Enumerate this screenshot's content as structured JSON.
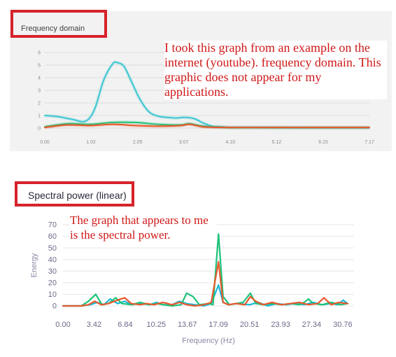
{
  "colors": {
    "annotation_red": "#d01818",
    "highlight_box": "#d6232b",
    "teal": "#3ec6d0",
    "green": "#1ec27a",
    "orange": "#e8592c",
    "cyan": "#19b9d8"
  },
  "annotations": {
    "top": "I took this graph from an example on the internet (youtube). frequency domain. This graphic does not appear for my applications.",
    "bottom": "The graph that appears to me is the spectral power."
  },
  "chart_data": [
    {
      "type": "line",
      "title": "Frequency domain",
      "xlabel": "",
      "ylabel": "",
      "xlim": [
        0,
        7.17
      ],
      "ylim": [
        0,
        6
      ],
      "xticks": [
        "0.00",
        "1.02",
        "2.05",
        "3.07",
        "4.10",
        "5.12",
        "6.15",
        "7.17"
      ],
      "yticks": [
        "0",
        "1",
        "2",
        "3",
        "4",
        "5",
        "6"
      ],
      "grid": true,
      "series": [
        {
          "color": "#3ec6d0",
          "x": [
            0,
            0.3,
            0.6,
            0.9,
            1.1,
            1.3,
            1.5,
            1.6,
            1.75,
            1.9,
            2.1,
            2.3,
            2.5,
            2.7,
            2.9,
            3.1,
            3.3,
            3.5,
            3.7,
            3.9,
            4.1,
            4.5,
            5.0,
            6.0,
            7.17
          ],
          "y": [
            1.0,
            0.9,
            0.7,
            0.55,
            1.5,
            3.8,
            5.1,
            5.2,
            4.9,
            3.8,
            2.3,
            1.3,
            0.95,
            0.85,
            0.8,
            0.85,
            0.75,
            0.4,
            0.15,
            0.1,
            0.05,
            0.05,
            0.03,
            0.02,
            0.02
          ]
        },
        {
          "color": "#1ec27a",
          "x": [
            0,
            0.5,
            1.0,
            1.5,
            2.0,
            2.5,
            3.0,
            3.2,
            3.5,
            4.0,
            5.0,
            6.0,
            7.17
          ],
          "y": [
            0.1,
            0.35,
            0.3,
            0.45,
            0.45,
            0.3,
            0.25,
            0.35,
            0.15,
            0.05,
            0.05,
            0.05,
            0.05
          ]
        },
        {
          "color": "#e8592c",
          "x": [
            0,
            0.5,
            1.0,
            1.5,
            2.0,
            2.5,
            3.0,
            3.2,
            3.5,
            4.0,
            5.0,
            6.0,
            7.17
          ],
          "y": [
            0.05,
            0.25,
            0.2,
            0.3,
            0.2,
            0.15,
            0.2,
            0.3,
            0.1,
            0.05,
            0.05,
            0.05,
            0.05
          ]
        }
      ]
    },
    {
      "type": "line",
      "title": "Spectral power (linear)",
      "xlabel": "Frequency (Hz)",
      "ylabel": "Energy",
      "xlim": [
        0,
        32
      ],
      "ylim": [
        0,
        70
      ],
      "xticks": [
        "0.00",
        "3.42",
        "6.84",
        "10.25",
        "13.67",
        "17.09",
        "20.51",
        "23.93",
        "27.34",
        "30.76"
      ],
      "yticks": [
        "0",
        "10",
        "20",
        "30",
        "40",
        "50",
        "60",
        "70"
      ],
      "grid": true,
      "series": [
        {
          "color": "#19b9d8",
          "x": [
            0,
            2.0,
            3.0,
            3.8,
            4.5,
            5.2,
            6.0,
            6.8,
            7.5,
            8.5,
            9.5,
            10.3,
            11.0,
            12.0,
            12.8,
            13.6,
            14.5,
            15.5,
            16.3,
            17.1,
            17.6,
            18.2,
            19.2,
            20.5,
            21.5,
            22.5,
            23.5,
            24.5,
            25.5,
            26.5,
            27.5,
            28.5,
            29.5,
            30.2,
            30.8,
            31.3
          ],
          "y": [
            0,
            0,
            1,
            3,
            1,
            6,
            2,
            4,
            1,
            2,
            1,
            3,
            1,
            1,
            4,
            2,
            1,
            0,
            2,
            18,
            3,
            1,
            2,
            1,
            3,
            0,
            2,
            1,
            2,
            1,
            3,
            1,
            2,
            1,
            5,
            2
          ]
        },
        {
          "color": "#1ec27a",
          "x": [
            0,
            2.0,
            2.8,
            3.6,
            4.3,
            5.0,
            5.8,
            6.5,
            7.5,
            8.5,
            9.5,
            10.3,
            11.0,
            12.0,
            13.0,
            13.6,
            14.3,
            15.0,
            16.0,
            16.5,
            17.1,
            17.6,
            18.3,
            19.0,
            19.8,
            20.6,
            21.2,
            22.0,
            23.0,
            24.0,
            25.0,
            26.0,
            26.5,
            27.0,
            27.5,
            28.5,
            29.5,
            30.5,
            31.3
          ],
          "y": [
            0,
            0,
            4,
            10,
            1,
            2,
            7,
            2,
            1,
            3,
            1,
            2,
            1,
            0,
            1,
            11,
            8,
            1,
            2,
            1,
            62,
            8,
            1,
            2,
            3,
            11,
            2,
            1,
            2,
            1,
            2,
            1,
            3,
            6,
            2,
            1,
            3,
            1,
            2
          ]
        },
        {
          "color": "#e8592c",
          "x": [
            0,
            2.0,
            2.8,
            3.5,
            4.2,
            5.0,
            6.0,
            6.8,
            7.5,
            8.5,
            9.2,
            10.0,
            11.0,
            12.0,
            12.8,
            13.6,
            14.5,
            15.5,
            16.3,
            17.1,
            17.6,
            18.2,
            19.0,
            20.0,
            20.6,
            21.2,
            22.0,
            23.0,
            24.0,
            25.0,
            26.0,
            27.0,
            28.0,
            28.7,
            29.5,
            30.3,
            31.3
          ],
          "y": [
            0,
            0,
            1,
            4,
            1,
            2,
            5,
            7,
            2,
            1,
            2,
            1,
            3,
            1,
            3,
            1,
            0,
            1,
            3,
            38,
            3,
            1,
            2,
            1,
            8,
            4,
            1,
            3,
            1,
            2,
            3,
            1,
            2,
            7,
            1,
            3,
            2
          ]
        }
      ]
    }
  ]
}
